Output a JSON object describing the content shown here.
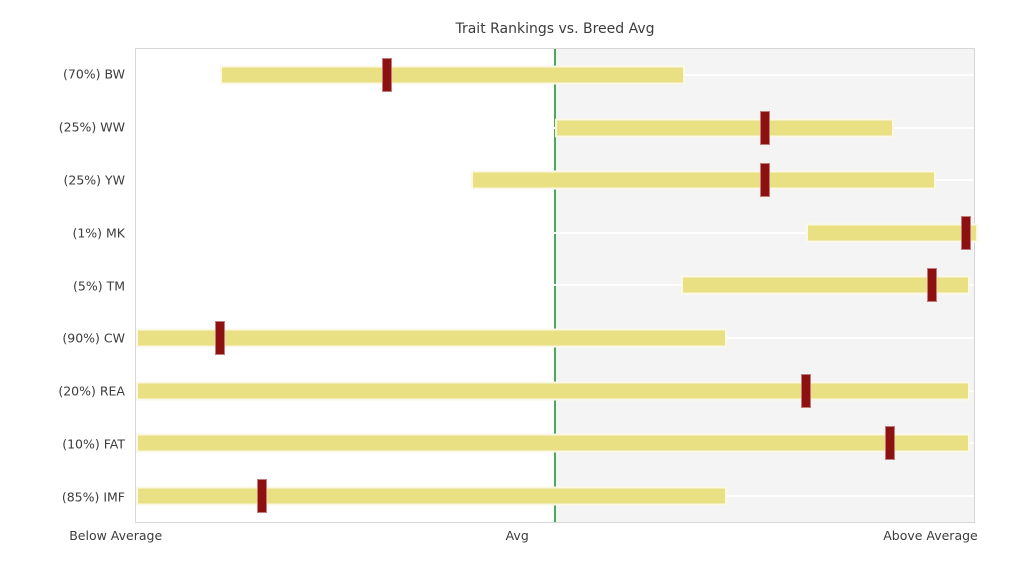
{
  "chart_data": {
    "type": "bar",
    "subtype": "horizontal-bullet-ranges",
    "title": "Trait Rankings vs. Breed Avg",
    "axis_range": [
      0,
      100
    ],
    "avg_line_x": 50,
    "grid": false,
    "legend": "none",
    "x_ticks": [
      {
        "label": "Below Average",
        "x": -2.3
      },
      {
        "label": "Avg",
        "x": 45.5
      },
      {
        "label": "Above Average",
        "x": 94.7
      }
    ],
    "rows": [
      {
        "label": "(70%) BW",
        "trait": "BW",
        "percentile": "70%",
        "range_low": 10,
        "range_high": 65,
        "value": 30
      },
      {
        "label": "(25%) WW",
        "trait": "WW",
        "percentile": "25%",
        "range_low": 50,
        "range_high": 90,
        "value": 75
      },
      {
        "label": "(25%) YW",
        "trait": "YW",
        "percentile": "25%",
        "range_low": 40,
        "range_high": 95,
        "value": 75
      },
      {
        "label": "(1%) MK",
        "trait": "MK",
        "percentile": "1%",
        "range_low": 80,
        "range_high": 100,
        "value": 99
      },
      {
        "label": "(5%) TM",
        "trait": "TM",
        "percentile": "5%",
        "range_low": 65,
        "range_high": 99,
        "value": 95
      },
      {
        "label": "(90%) CW",
        "trait": "CW",
        "percentile": "90%",
        "range_low": 0,
        "range_high": 70,
        "value": 10
      },
      {
        "label": "(20%) REA",
        "trait": "REA",
        "percentile": "20%",
        "range_low": 0,
        "range_high": 99,
        "value": 80
      },
      {
        "label": "(10%) FAT",
        "trait": "FAT",
        "percentile": "10%",
        "range_low": 0,
        "range_high": 99,
        "value": 90
      },
      {
        "label": "(85%) IMF",
        "trait": "IMF",
        "percentile": "85%",
        "range_low": 0,
        "range_high": 70,
        "value": 15
      }
    ],
    "colors": {
      "background": "#ffffff",
      "bar_fill": "#e9e083",
      "bar_edge": "rgba(255,255,255,0.8)",
      "marker_fill": "#8e1111",
      "marker_edge": "rgba(255,255,255,0.45)",
      "avg_line": "#4aa95a",
      "above_avg_panel_bg": "#f4f4f4",
      "plot_border": "#d6d6d6",
      "row_guide_line": "rgba(255,255,255,0.9)",
      "text": "#3c3c3c"
    }
  }
}
